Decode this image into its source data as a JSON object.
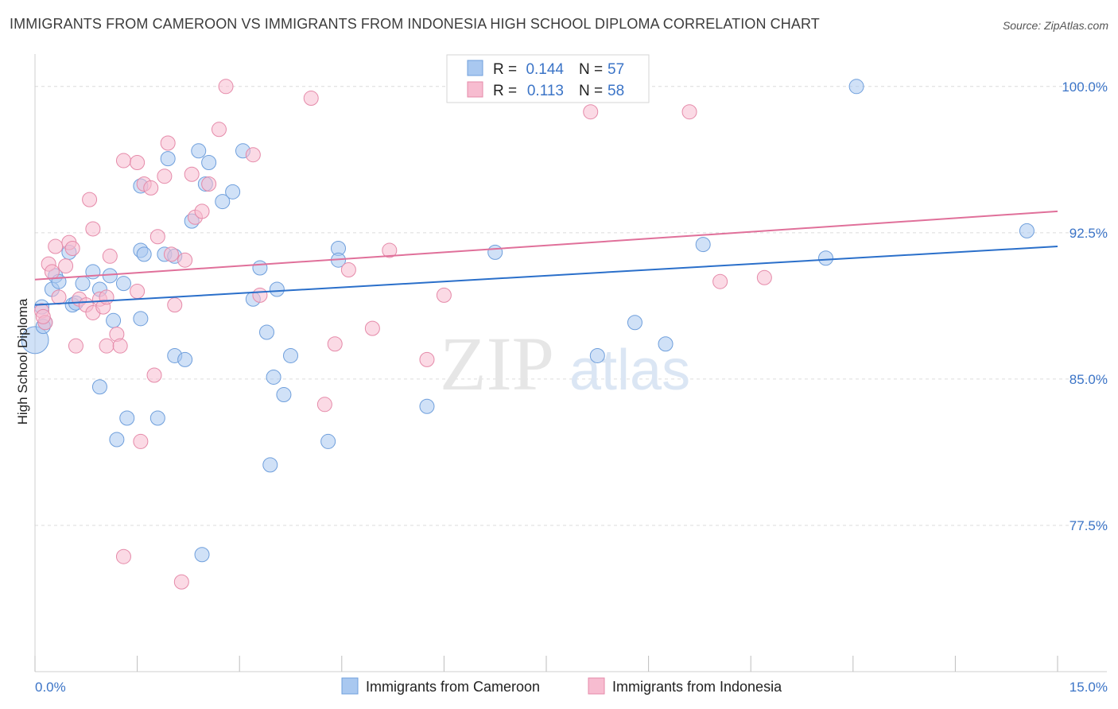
{
  "title": "IMMIGRANTS FROM CAMEROON VS IMMIGRANTS FROM INDONESIA HIGH SCHOOL DIPLOMA CORRELATION CHART",
  "source": "Source: ZipAtlas.com",
  "watermark": {
    "zip": "ZIP",
    "atlas": "atlas"
  },
  "chart_data": {
    "type": "scatter",
    "xlabel": "",
    "ylabel": "High School Diploma",
    "xlim": [
      0,
      15
    ],
    "ylim": [
      70,
      101.5
    ],
    "x_tick_labels": [
      {
        "value": 0,
        "label": "0.0%"
      },
      {
        "value": 15,
        "label": "15.0%"
      }
    ],
    "y_tick_labels": [
      {
        "value": 100,
        "label": "100.0%"
      },
      {
        "value": 92.5,
        "label": "92.5%"
      },
      {
        "value": 85,
        "label": "85.0%"
      },
      {
        "value": 77.5,
        "label": "77.5%"
      }
    ],
    "grid": "horizontal dashed",
    "legend_position": "top-center",
    "stats_legend": [
      {
        "r_label": "R =",
        "r_value": "0.144",
        "n_label": "N =",
        "n_value": "57",
        "color": "#a9c8f0",
        "stroke": "#6f9fdc"
      },
      {
        "r_label": "R =",
        "r_value": "0.113",
        "n_label": "N =",
        "n_value": "58",
        "color": "#f7bcd0",
        "stroke": "#e58aa9"
      }
    ],
    "series": [
      {
        "name": "Immigrants from Cameroon",
        "color": "#a9c8f0",
        "stroke": "#6f9fdc",
        "line_color": "#2a6fca",
        "trend": {
          "x": [
            0,
            15
          ],
          "y": [
            88.8,
            91.8
          ]
        },
        "points": [
          [
            0.0,
            87.0
          ],
          [
            0.1,
            88.7
          ],
          [
            0.15,
            87.9
          ],
          [
            0.25,
            89.6
          ],
          [
            0.3,
            90.3
          ],
          [
            0.35,
            90.0
          ],
          [
            0.5,
            91.5
          ],
          [
            0.55,
            88.8
          ],
          [
            0.6,
            88.9
          ],
          [
            0.7,
            89.9
          ],
          [
            0.85,
            90.5
          ],
          [
            0.95,
            89.6
          ],
          [
            1.1,
            90.3
          ],
          [
            1.15,
            88.0
          ],
          [
            1.3,
            89.9
          ],
          [
            0.95,
            84.6
          ],
          [
            1.35,
            83.0
          ],
          [
            1.2,
            81.9
          ],
          [
            1.55,
            91.6
          ],
          [
            1.6,
            91.4
          ],
          [
            1.55,
            88.1
          ],
          [
            1.8,
            83.0
          ],
          [
            1.9,
            91.4
          ],
          [
            2.05,
            91.3
          ],
          [
            1.95,
            96.3
          ],
          [
            1.55,
            94.9
          ],
          [
            2.4,
            96.7
          ],
          [
            2.55,
            96.1
          ],
          [
            2.5,
            95.0
          ],
          [
            2.3,
            93.1
          ],
          [
            2.75,
            94.1
          ],
          [
            2.9,
            94.6
          ],
          [
            3.05,
            96.7
          ],
          [
            2.05,
            86.2
          ],
          [
            2.2,
            86.0
          ],
          [
            2.45,
            76.0
          ],
          [
            3.3,
            90.7
          ],
          [
            3.2,
            89.1
          ],
          [
            3.4,
            87.4
          ],
          [
            3.55,
            89.6
          ],
          [
            3.5,
            85.1
          ],
          [
            3.65,
            84.2
          ],
          [
            3.75,
            86.2
          ],
          [
            3.45,
            80.6
          ],
          [
            4.3,
            81.8
          ],
          [
            4.45,
            91.7
          ],
          [
            4.45,
            91.1
          ],
          [
            5.75,
            83.6
          ],
          [
            6.75,
            91.5
          ],
          [
            8.25,
            86.2
          ],
          [
            8.8,
            87.9
          ],
          [
            9.25,
            86.8
          ],
          [
            9.8,
            91.9
          ],
          [
            11.6,
            91.2
          ],
          [
            12.05,
            100.0
          ],
          [
            14.55,
            92.6
          ],
          [
            0.12,
            87.7
          ]
        ]
      },
      {
        "name": "Immigrants from Indonesia",
        "color": "#f7bcd0",
        "stroke": "#e58aa9",
        "line_color": "#e0709a",
        "trend": {
          "x": [
            0,
            15
          ],
          "y": [
            90.1,
            93.6
          ]
        },
        "points": [
          [
            0.1,
            88.5
          ],
          [
            0.15,
            87.9
          ],
          [
            0.12,
            88.2
          ],
          [
            0.2,
            90.9
          ],
          [
            0.25,
            90.5
          ],
          [
            0.3,
            91.8
          ],
          [
            0.35,
            89.2
          ],
          [
            0.45,
            90.8
          ],
          [
            0.5,
            92.0
          ],
          [
            0.55,
            91.7
          ],
          [
            0.65,
            89.1
          ],
          [
            0.6,
            86.7
          ],
          [
            0.75,
            88.8
          ],
          [
            0.85,
            88.4
          ],
          [
            0.95,
            89.1
          ],
          [
            1.0,
            88.7
          ],
          [
            1.05,
            86.7
          ],
          [
            1.1,
            91.3
          ],
          [
            1.2,
            87.3
          ],
          [
            1.25,
            86.7
          ],
          [
            0.8,
            94.2
          ],
          [
            0.85,
            92.7
          ],
          [
            1.3,
            96.2
          ],
          [
            1.5,
            96.1
          ],
          [
            1.5,
            89.5
          ],
          [
            1.55,
            81.8
          ],
          [
            1.3,
            75.9
          ],
          [
            1.6,
            95.0
          ],
          [
            1.7,
            94.8
          ],
          [
            1.75,
            85.2
          ],
          [
            1.8,
            92.3
          ],
          [
            1.9,
            95.4
          ],
          [
            1.95,
            97.1
          ],
          [
            2.0,
            91.4
          ],
          [
            2.05,
            88.8
          ],
          [
            2.2,
            91.1
          ],
          [
            2.15,
            74.6
          ],
          [
            2.3,
            95.5
          ],
          [
            2.35,
            93.3
          ],
          [
            2.45,
            93.6
          ],
          [
            2.55,
            95.0
          ],
          [
            2.7,
            97.8
          ],
          [
            2.8,
            100.0
          ],
          [
            3.2,
            96.5
          ],
          [
            3.3,
            89.3
          ],
          [
            4.05,
            99.4
          ],
          [
            4.25,
            83.7
          ],
          [
            4.4,
            86.8
          ],
          [
            4.6,
            90.6
          ],
          [
            4.95,
            87.6
          ],
          [
            5.2,
            91.6
          ],
          [
            5.75,
            86.0
          ],
          [
            6.0,
            89.3
          ],
          [
            8.15,
            98.7
          ],
          [
            9.6,
            98.7
          ],
          [
            10.05,
            90.0
          ],
          [
            10.7,
            90.2
          ],
          [
            1.05,
            89.2
          ]
        ]
      }
    ]
  }
}
